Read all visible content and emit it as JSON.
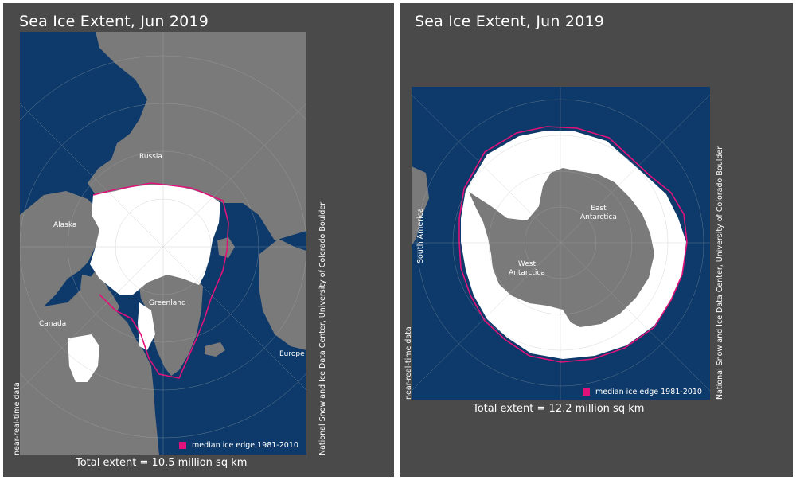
{
  "north": {
    "title": "Sea Ice Extent, Jun 2019",
    "total": "Total extent = 10.5 million sq km",
    "side_left": "near-real-time data",
    "side_right": "National Snow and Ice Data Center, University of Colorado Boulder",
    "legend": "median ice edge 1981-2010",
    "labels": {
      "russia": "Russia",
      "alaska": "Alaska",
      "canada": "Canada",
      "greenland": "Greenland",
      "europe": "Europe"
    }
  },
  "south": {
    "title": "Sea Ice Extent, Jun 2019",
    "total": "Total extent = 12.2 million sq km",
    "side_left": "near-real-time data",
    "side_right": "National Snow and Ice Data Center, University of Colorado Boulder",
    "legend": "median ice edge 1981-2010",
    "labels": {
      "south_america": "South America",
      "east_antarctica_1": "East",
      "east_antarctica_2": "Antarctica",
      "west_antarctica_1": "West",
      "west_antarctica_2": "Antarctica"
    }
  },
  "colors": {
    "background": "#4a4a4a",
    "ocean": "#0d3a6b",
    "land": "#7a7a7a",
    "ice": "#ffffff",
    "median_edge": "#e0127a"
  }
}
